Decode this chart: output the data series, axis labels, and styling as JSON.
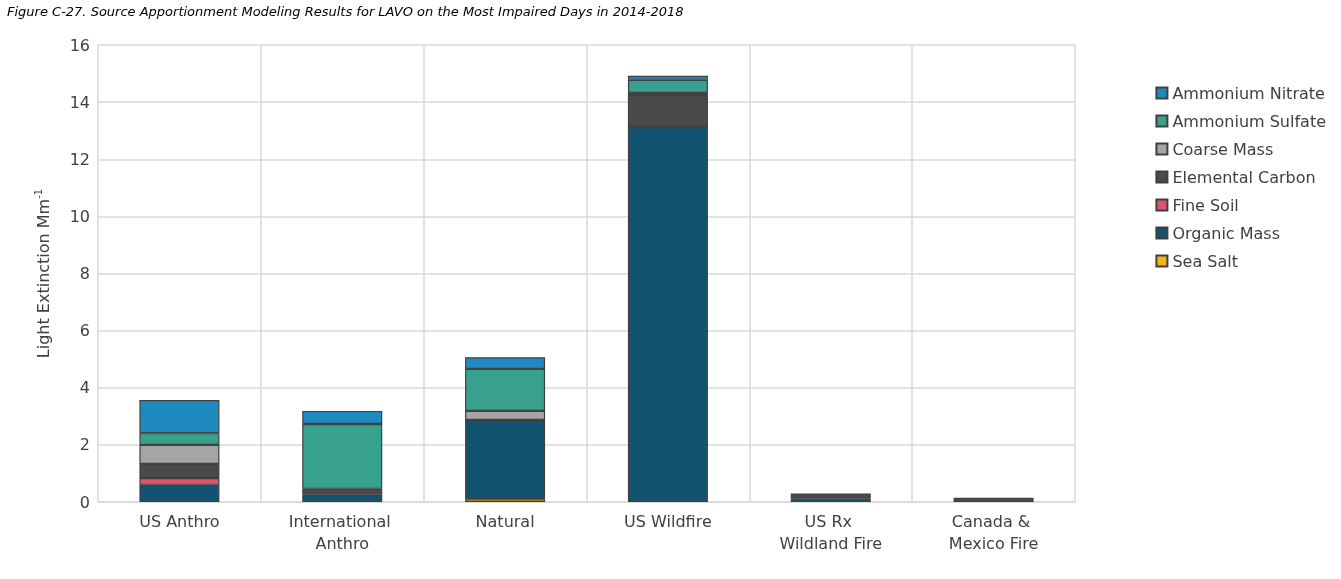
{
  "chart_data": {
    "type": "bar",
    "stacked": true,
    "title": "Figure C-27. Source Apportionment Modeling Results for LAVO on the Most Impaired Days in 2014-2018",
    "ylabel": "Light Extinction Mm$^{-1}$",
    "categories": [
      "US Anthro",
      "International Anthro",
      "Natural",
      "US Wildfire",
      "US Rx Wildland Fire",
      "Canada & Mexico Fire"
    ],
    "series": [
      {
        "name": "Sea Salt",
        "color": "#f6b41c",
        "values": [
          0,
          0,
          0.1,
          0,
          0,
          0
        ]
      },
      {
        "name": "Organic Mass",
        "color": "#135372",
        "values": [
          0.6,
          0.25,
          2.77,
          13.13,
          0.13,
          0
        ]
      },
      {
        "name": "Fine Soil",
        "color": "#e0546e",
        "values": [
          0.24,
          0,
          0,
          0,
          0,
          0
        ]
      },
      {
        "name": "Elemental Carbon",
        "color": "#4a4a4d",
        "values": [
          0.49,
          0.21,
          0,
          1.12,
          0.17,
          0.15
        ]
      },
      {
        "name": "Coarse Mass",
        "color": "#a5a5a5",
        "values": [
          0.67,
          0,
          0.32,
          0.07,
          0,
          0
        ]
      },
      {
        "name": "Ammonium Sulfate",
        "color": "#37a18e",
        "values": [
          0.41,
          2.27,
          1.47,
          0.46,
          0,
          0
        ]
      },
      {
        "name": "Ammonium Nitrate",
        "color": "#1f8ac0",
        "values": [
          1.16,
          0.46,
          0.41,
          0.14,
          0,
          0
        ]
      }
    ],
    "ylim": [
      0,
      16
    ],
    "yticks": [
      0,
      2,
      4,
      6,
      8,
      10,
      12,
      14,
      16
    ],
    "grid": true,
    "legend": "right"
  }
}
